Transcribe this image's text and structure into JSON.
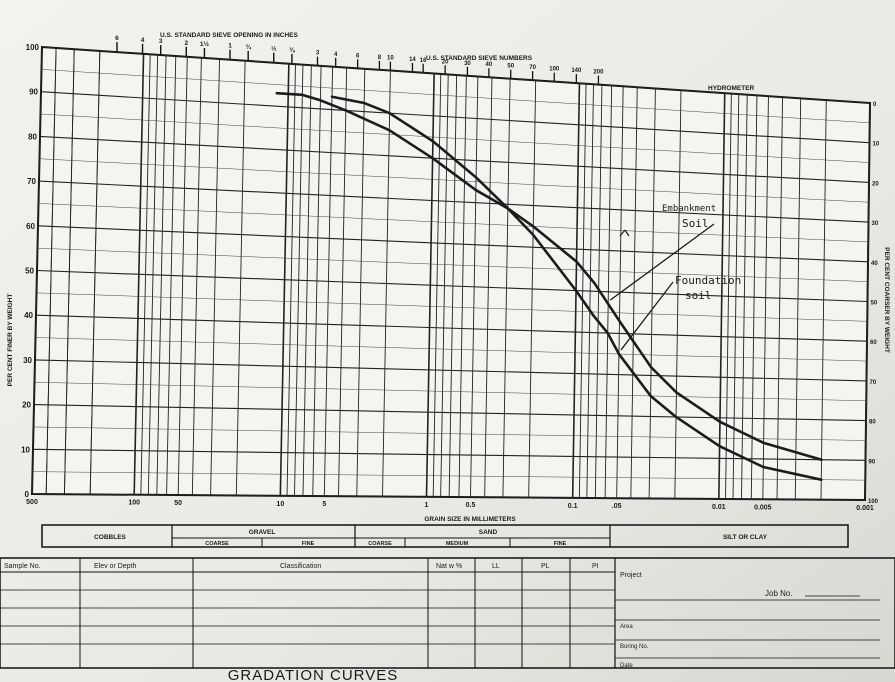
{
  "top_labels": {
    "sieve_inches": "U.S. STANDARD SIEVE OPENING IN INCHES",
    "sieve_numbers": "U.S. STANDARD SIEVE NUMBERS",
    "hydrometer": "HYDROMETER",
    "inch_ticks": [
      "6",
      "4",
      "3",
      "2",
      "1½",
      "1",
      "¾",
      "½",
      "⅜"
    ],
    "number_ticks": [
      "3",
      "4",
      "6",
      "8",
      "10",
      "14",
      "16",
      "20",
      "30",
      "40",
      "50",
      "70",
      "100",
      "140",
      "200"
    ]
  },
  "axes": {
    "left_label": "PER CENT FINER BY WEIGHT",
    "right_label": "PER CENT COARSER BY WEIGHT",
    "bottom_label": "GRAIN SIZE IN MILLIMETERS"
  },
  "chart_data": {
    "type": "line",
    "title": "",
    "xlabel": "GRAIN SIZE IN MILLIMETERS",
    "ylabel": "PER CENT FINER BY WEIGHT",
    "y2label": "PER CENT COARSER BY WEIGHT",
    "x_scale": "log",
    "x_reversed": true,
    "xlim": [
      500,
      0.001
    ],
    "ylim": [
      0,
      100
    ],
    "x_tick_labels": [
      {
        "x": 500,
        "label": "500"
      },
      {
        "x": 100,
        "label": "100"
      },
      {
        "x": 50,
        "label": "50"
      },
      {
        "x": 10,
        "label": "10"
      },
      {
        "x": 5,
        "label": "5"
      },
      {
        "x": 1,
        "label": "1"
      },
      {
        "x": 0.5,
        "label": "0.5"
      },
      {
        "x": 0.1,
        "label": "0.1"
      },
      {
        "x": 0.05,
        "label": ".05"
      },
      {
        "x": 0.01,
        "label": "0.01"
      },
      {
        "x": 0.005,
        "label": "0.005"
      },
      {
        "x": 0.001,
        "label": "0.001"
      }
    ],
    "y_ticks": [
      0,
      10,
      20,
      30,
      40,
      50,
      60,
      70,
      80,
      90,
      100
    ],
    "y2_ticks": [
      0,
      10,
      20,
      30,
      40,
      50,
      60,
      70,
      80,
      90,
      100
    ],
    "grid": true,
    "series": [
      {
        "name": "Embankment Soil",
        "x": [
          12,
          8,
          6,
          4,
          2,
          1,
          0.5,
          0.3,
          0.2,
          0.1,
          0.075,
          0.05,
          0.03,
          0.02,
          0.01,
          0.005,
          0.002
        ],
        "y": [
          93,
          93,
          92,
          90,
          86,
          80,
          73,
          69,
          65,
          57,
          52,
          43,
          32,
          26,
          19,
          14,
          10
        ]
      },
      {
        "name": "Foundation soil",
        "x": [
          5,
          3,
          2,
          1,
          0.5,
          0.3,
          0.2,
          0.1,
          0.075,
          0.06,
          0.05,
          0.03,
          0.02,
          0.01,
          0.005,
          0.002
        ],
        "y": [
          93,
          92,
          90,
          84,
          76,
          69,
          63,
          50,
          44,
          40,
          35,
          25,
          20,
          13,
          8,
          5
        ]
      }
    ],
    "annotations": [
      {
        "text": "Embankment",
        "target_series": "Embankment Soil"
      },
      {
        "text": "Soil",
        "target_series": "Embankment Soil"
      },
      {
        "text": "Foundation",
        "target_series": "Foundation soil"
      },
      {
        "text": "soil",
        "target_series": "Foundation soil"
      }
    ]
  },
  "classification": {
    "cobbles": "COBBLES",
    "gravel": "GRAVEL",
    "sand": "SAND",
    "silt_clay": "SILT OR CLAY",
    "gravel_coarse": "COARSE",
    "gravel_fine": "FINE",
    "sand_coarse": "COARSE",
    "sand_medium": "MEDIUM",
    "sand_fine": "FINE"
  },
  "table": {
    "headers": [
      "Sample No.",
      "Elev or Depth",
      "Classification",
      "Nat w %",
      "LL",
      "PL",
      "PI"
    ],
    "project_label": "Project",
    "job_label": "Job No.",
    "area_label": "Area",
    "boring_label": "Boring No.",
    "date_label": "Date"
  },
  "footer_title": "GRADATION CURVES"
}
